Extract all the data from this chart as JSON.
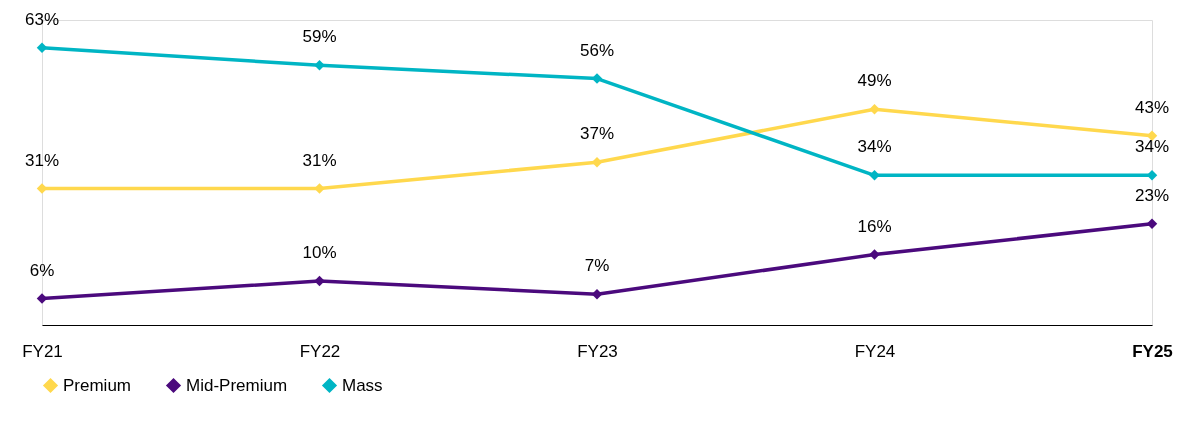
{
  "chart_data": {
    "type": "line",
    "tick_labels": "x",
    "categories": [
      "FY21",
      "FY22",
      "FY23",
      "FY24",
      "FY25"
    ],
    "marker": "diamond",
    "legend": "bottom",
    "grid": false,
    "series": [
      {
        "name": "Premium",
        "color": "#ffd84d",
        "values": [
          31,
          31,
          37,
          49,
          43
        ],
        "value_labels": [
          "31%",
          "31%",
          "37%",
          "49%",
          "43%"
        ]
      },
      {
        "name": "Mid-Premium",
        "color": "#4b0a7d",
        "values": [
          6,
          10,
          7,
          16,
          23
        ],
        "value_labels": [
          "6%",
          "10%",
          "7%",
          "16%",
          "23%"
        ]
      },
      {
        "name": "Mass",
        "color": "#00b5c4",
        "values": [
          63,
          59,
          56,
          34,
          34
        ],
        "value_labels": [
          "63%",
          "59%",
          "56%",
          "34%",
          "34%"
        ]
      }
    ]
  }
}
